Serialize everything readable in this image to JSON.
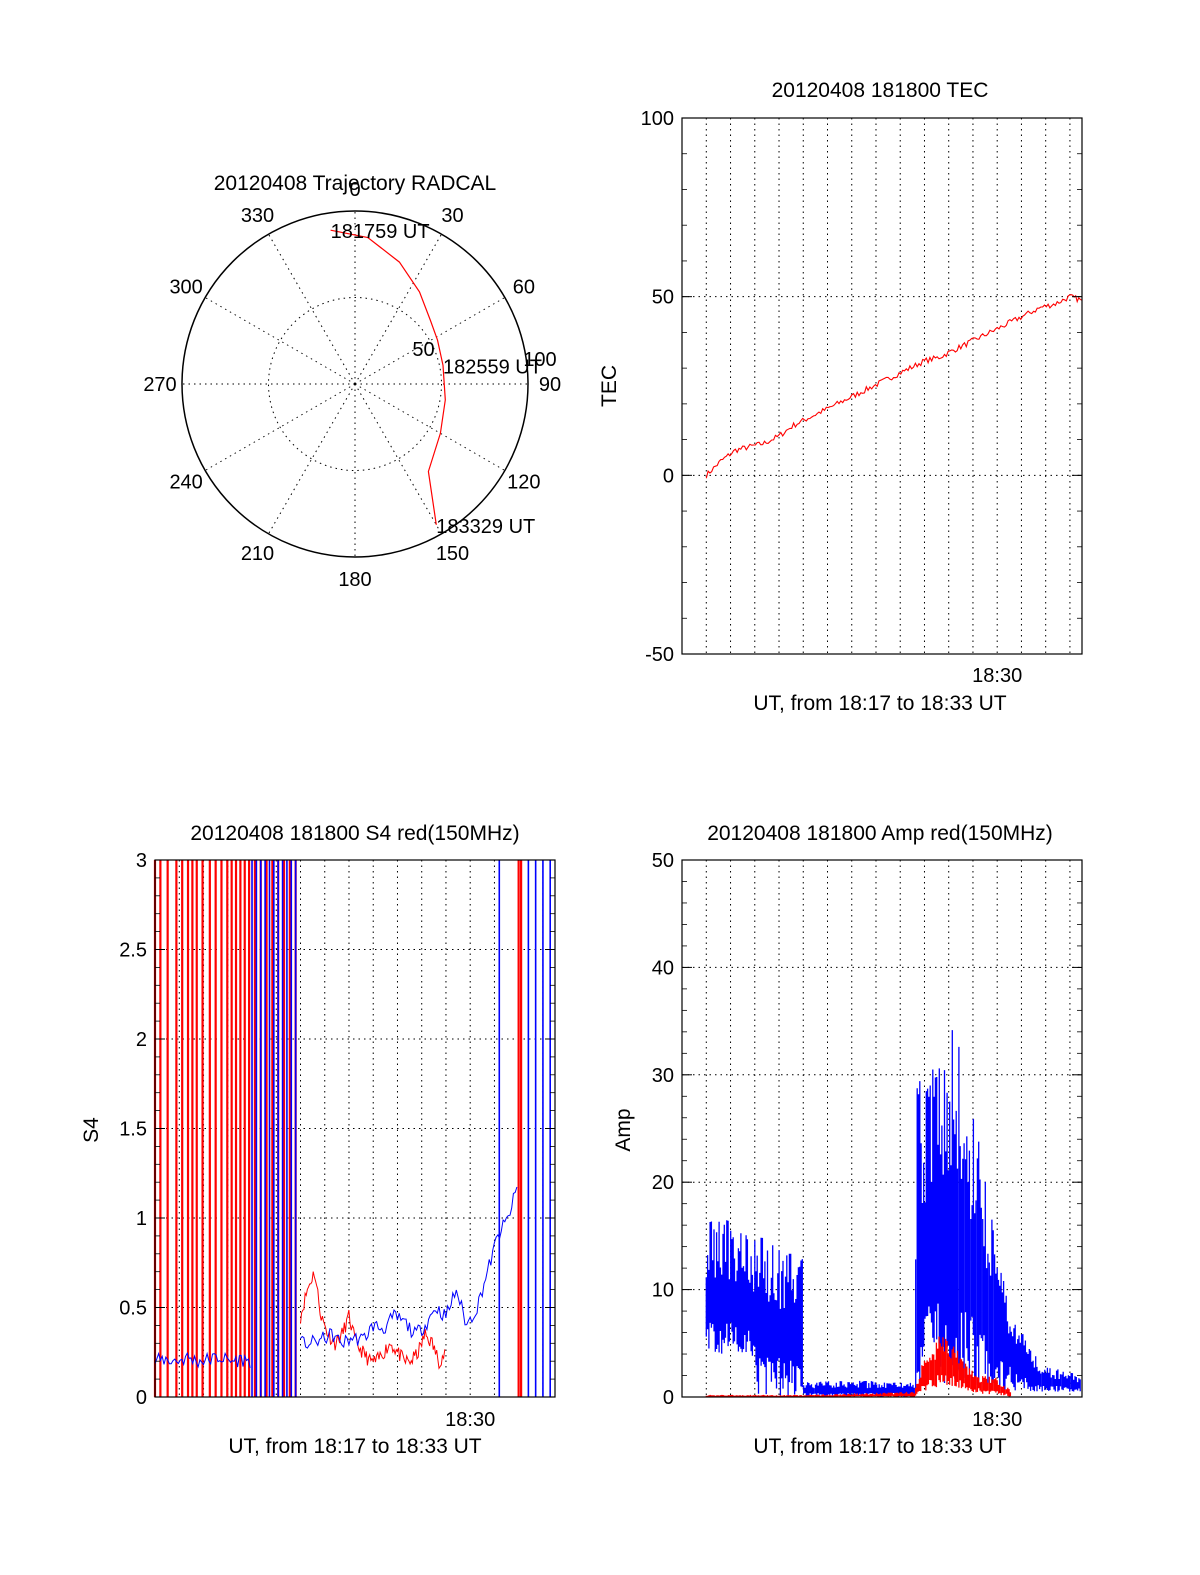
{
  "chart_data": [
    {
      "id": "trajectory",
      "type": "polar",
      "title": "20120408 Trajectory RADCAL",
      "angle_labels": [
        "0",
        "30",
        "60",
        "90",
        "120",
        "150",
        "180",
        "210",
        "240",
        "270",
        "300",
        "330"
      ],
      "radius_labels": [
        "50",
        "100"
      ],
      "rmax": 100,
      "grid": true,
      "series": [
        {
          "color": "#ff0000",
          "points": [
            [
              -9,
              90
            ],
            [
              5,
              85
            ],
            [
              20,
              75
            ],
            [
              35,
              65
            ],
            [
              50,
              57
            ],
            [
              62,
              54
            ],
            [
              78,
              52
            ],
            [
              100,
              53
            ],
            [
              120,
              57
            ],
            [
              140,
              66
            ],
            [
              150,
              94
            ]
          ]
        }
      ],
      "annotations": [
        {
          "text": "181759 UT",
          "az": -9,
          "r": 90
        },
        {
          "text": "182559 UT",
          "az": 78,
          "r": 52
        },
        {
          "text": "183329 UT",
          "az": 150,
          "r": 94
        }
      ]
    },
    {
      "id": "tec",
      "type": "line",
      "title": "20120408 181800 TEC",
      "ylabel": "TEC",
      "xlabel": "UT, from 18:17 to 18:33 UT",
      "xlim": [
        18.2833,
        18.5583
      ],
      "ylim": [
        -50,
        100
      ],
      "yticks": [
        "-50",
        "0",
        "50",
        "100"
      ],
      "xtick_label": "18:30",
      "xtick_value": 18.5,
      "grid": true,
      "series": [
        {
          "color": "#ff0000",
          "x": [
            18.3,
            18.31,
            18.32,
            18.33,
            18.34,
            18.35,
            18.36,
            18.37,
            18.38,
            18.39,
            18.4,
            18.41,
            18.42,
            18.43,
            18.44,
            18.45,
            18.46,
            18.47,
            18.48,
            18.49,
            18.5,
            18.51,
            18.52,
            18.53,
            18.54,
            18.55,
            18.558
          ],
          "y": [
            0,
            4,
            7,
            8,
            9,
            11,
            14,
            16,
            18,
            20,
            22,
            24,
            26,
            28,
            30,
            32,
            33,
            35,
            37,
            39,
            41,
            43,
            45,
            47,
            48,
            50,
            49
          ]
        }
      ]
    },
    {
      "id": "s4",
      "type": "line",
      "title": "20120408 181800 S4 red(150MHz)",
      "ylabel": "S4",
      "xlabel": "UT, from 18:17 to 18:33 UT",
      "xlim": [
        18.2833,
        18.5583
      ],
      "ylim": [
        0,
        3
      ],
      "yticks": [
        "0",
        "0.5",
        "1",
        "1.5",
        "2",
        "2.5",
        "3"
      ],
      "xtick_label": "18:30",
      "xtick_value": 18.5,
      "grid": true,
      "series": [
        {
          "color": "#ff0000",
          "segments": [
            {
              "x0": 18.3833,
              "x1": 18.4833,
              "y": [
                0.45,
                0.6,
                0.7,
                0.45,
                0.35,
                0.3,
                0.35,
                0.45,
                0.3,
                0.25,
                0.2,
                0.2,
                0.25,
                0.3,
                0.25,
                0.2,
                0.2,
                0.25,
                0.35,
                0.3,
                0.2,
                0.25
              ]
            }
          ],
          "spikes": [
            18.2833,
            18.287,
            18.292,
            18.298,
            18.302,
            18.306,
            18.309,
            18.312,
            18.316,
            18.321,
            18.325,
            18.329,
            18.333,
            18.336,
            18.339,
            18.342,
            18.345,
            18.348,
            18.352,
            18.356,
            18.36,
            18.364,
            18.368,
            18.372,
            18.376,
            18.38,
            18.5333,
            18.535
          ]
        },
        {
          "color": "#0000ff",
          "segments": [
            {
              "x0": 18.2833,
              "x1": 18.35,
              "y": [
                0.2,
                0.21,
                0.2,
                0.22,
                0.2,
                0.21,
                0.22,
                0.2,
                0.21,
                0.2
              ]
            },
            {
              "x0": 18.3833,
              "x1": 18.5333,
              "y": [
                0.3,
                0.3,
                0.32,
                0.35,
                0.3,
                0.33,
                0.32,
                0.4,
                0.38,
                0.45,
                0.42,
                0.35,
                0.4,
                0.5,
                0.45,
                0.6,
                0.4,
                0.5,
                0.7,
                0.9,
                1.0,
                1.2
              ]
            }
          ],
          "spikes": [
            18.35,
            18.353,
            18.356,
            18.359,
            18.362,
            18.365,
            18.368,
            18.371,
            18.374,
            18.377,
            18.38,
            18.52,
            18.54,
            18.545,
            18.55,
            18.555
          ]
        }
      ]
    },
    {
      "id": "amp",
      "type": "line",
      "title": "20120408 181800 Amp red(150MHz)",
      "ylabel": "Amp",
      "xlabel": "UT, from 18:17 to 18:33 UT",
      "xlim": [
        18.2833,
        18.5583
      ],
      "ylim": [
        0,
        50
      ],
      "yticks": [
        "0",
        "10",
        "20",
        "30",
        "40",
        "50"
      ],
      "xtick_label": "18:30",
      "xtick_value": 18.5,
      "grid": true,
      "series": [
        {
          "color": "#0000ff",
          "envelope": {
            "x": [
              18.3,
              18.33,
              18.335,
              18.366,
              18.367,
              18.443,
              18.445,
              18.47,
              18.48,
              18.5,
              18.515,
              18.53,
              18.558
            ],
            "low": [
              4,
              4,
              0,
              0,
              0,
              0,
              1,
              1,
              1,
              0.5,
              0.5,
              0.5,
              0.5
            ],
            "high": [
              17,
              16,
              15,
              14,
              1.5,
              1.5,
              30,
              37,
              30,
              14,
              7,
              3,
              2
            ]
          }
        },
        {
          "color": "#ff0000",
          "envelope": {
            "x": [
              18.3,
              18.367,
              18.443,
              18.45,
              18.46,
              18.47,
              18.48,
              18.49,
              18.5,
              18.51
            ],
            "low": [
              0,
              0,
              0,
              0.5,
              1,
              1,
              0.5,
              0.3,
              0.2,
              0
            ],
            "high": [
              0.2,
              0.2,
              0.5,
              4,
              6,
              5,
              3,
              2,
              2,
              0.5
            ]
          }
        }
      ]
    }
  ]
}
